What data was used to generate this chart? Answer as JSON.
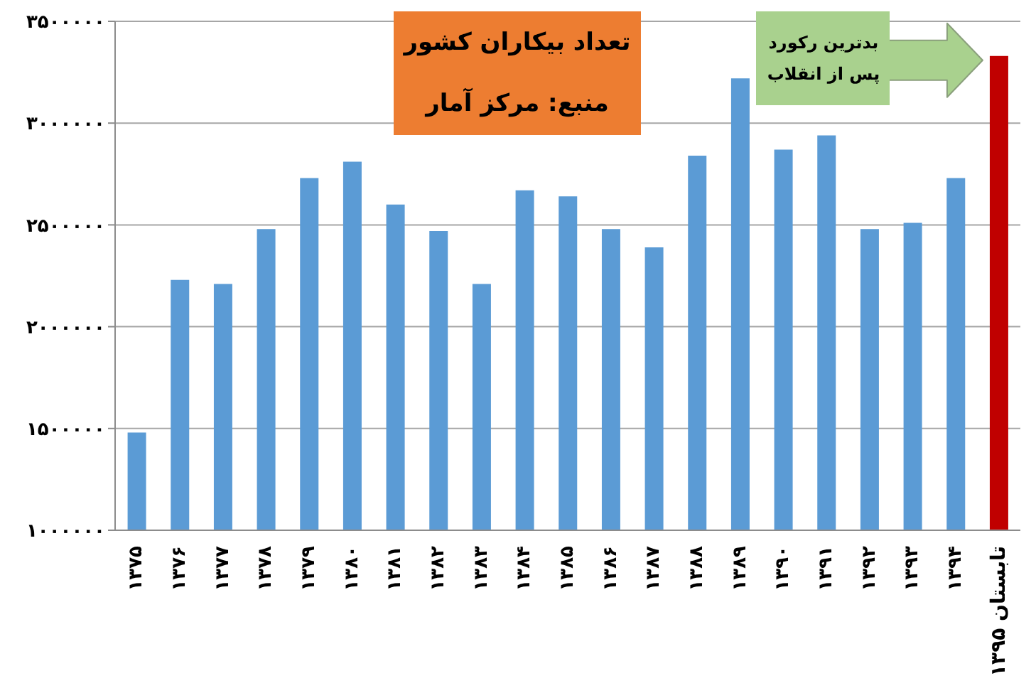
{
  "chart_data": {
    "type": "bar",
    "title": "تعداد بیکاران کشور",
    "annotations": [
      "منبع: مرکز آمار",
      "بدترین رکورد پس از انقلاب"
    ],
    "categories": [
      "۱۳۷۵",
      "۱۳۷۶",
      "۱۳۷۷",
      "۱۳۷۸",
      "۱۳۷۹",
      "۱۳۸۰",
      "۱۳۸۱",
      "۱۳۸۲",
      "۱۳۸۳",
      "۱۳۸۴",
      "۱۳۸۵",
      "۱۳۸۶",
      "۱۳۸۷",
      "۱۳۸۸",
      "۱۳۸۹",
      "۱۳۹۰",
      "۱۳۹۱",
      "۱۳۹۲",
      "۱۳۹۳",
      "۱۳۹۴",
      "تابستان ۱۳۹۵"
    ],
    "values": [
      1480000,
      2230000,
      2210000,
      2480000,
      2730000,
      2810000,
      2600000,
      2470000,
      2210000,
      2670000,
      2640000,
      2480000,
      2390000,
      2840000,
      3220000,
      2870000,
      2940000,
      2480000,
      2510000,
      2730000,
      3330000
    ],
    "colors": [
      "#5b9bd5",
      "#5b9bd5",
      "#5b9bd5",
      "#5b9bd5",
      "#5b9bd5",
      "#5b9bd5",
      "#5b9bd5",
      "#5b9bd5",
      "#5b9bd5",
      "#5b9bd5",
      "#5b9bd5",
      "#5b9bd5",
      "#5b9bd5",
      "#5b9bd5",
      "#5b9bd5",
      "#5b9bd5",
      "#5b9bd5",
      "#5b9bd5",
      "#5b9bd5",
      "#5b9bd5",
      "#c00000"
    ],
    "ylim": [
      1000000,
      3500000
    ],
    "yticks": [
      {
        "value": 1000000,
        "label": "۱۰۰۰۰۰۰"
      },
      {
        "value": 1500000,
        "label": "۱۵۰۰۰۰۰"
      },
      {
        "value": 2000000,
        "label": "۲۰۰۰۰۰۰"
      },
      {
        "value": 2500000,
        "label": "۲۵۰۰۰۰۰"
      },
      {
        "value": 3000000,
        "label": "۳۰۰۰۰۰۰"
      },
      {
        "value": 3500000,
        "label": "۳۵۰۰۰۰۰"
      }
    ],
    "grid": "y"
  }
}
